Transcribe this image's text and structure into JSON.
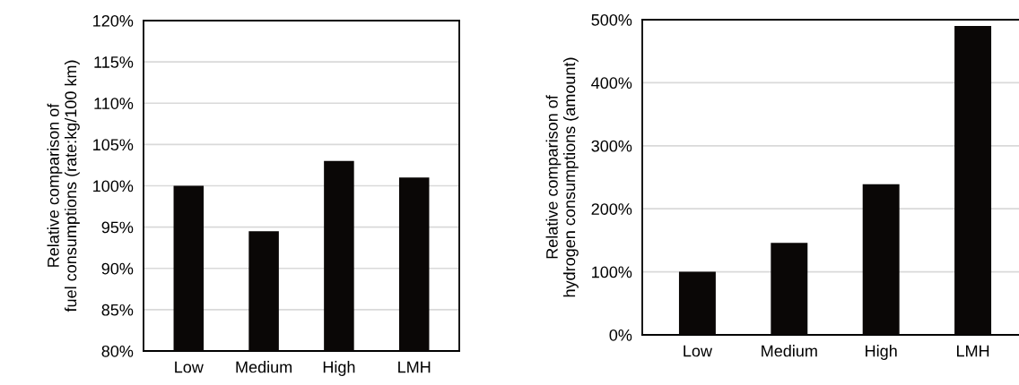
{
  "chart_data": [
    {
      "type": "bar",
      "ylabel": "Relative comparison of\nfuel consumptions (rate:kg/100 km)",
      "categories": [
        "Low",
        "Medium",
        "High",
        "LMH"
      ],
      "values": [
        100,
        94.5,
        103,
        101
      ],
      "color": "#0a0706",
      "ylim": [
        80,
        120
      ],
      "yticks": [
        {
          "value": 80,
          "label": "80%"
        },
        {
          "value": 85,
          "label": "85%"
        },
        {
          "value": 90,
          "label": "90%"
        },
        {
          "value": 95,
          "label": "95%"
        },
        {
          "value": 100,
          "label": "100%"
        },
        {
          "value": 105,
          "label": "105%"
        },
        {
          "value": 110,
          "label": "110%"
        },
        {
          "value": 115,
          "label": "115%"
        },
        {
          "value": 120,
          "label": "120%"
        }
      ],
      "grid": "y",
      "legend": false
    },
    {
      "type": "bar",
      "ylabel": "Relative comparison of\nhydrogen consumptions (amount)",
      "categories": [
        "Low",
        "Medium",
        "High",
        "LMH"
      ],
      "values": [
        100,
        146,
        239,
        490
      ],
      "color": "#0a0706",
      "ylim": [
        0,
        500
      ],
      "yticks": [
        {
          "value": 0,
          "label": "0%"
        },
        {
          "value": 100,
          "label": "100%"
        },
        {
          "value": 200,
          "label": "200%"
        },
        {
          "value": 300,
          "label": "300%"
        },
        {
          "value": 400,
          "label": "400%"
        },
        {
          "value": 500,
          "label": "500%"
        }
      ],
      "grid": "y",
      "legend": false
    }
  ]
}
